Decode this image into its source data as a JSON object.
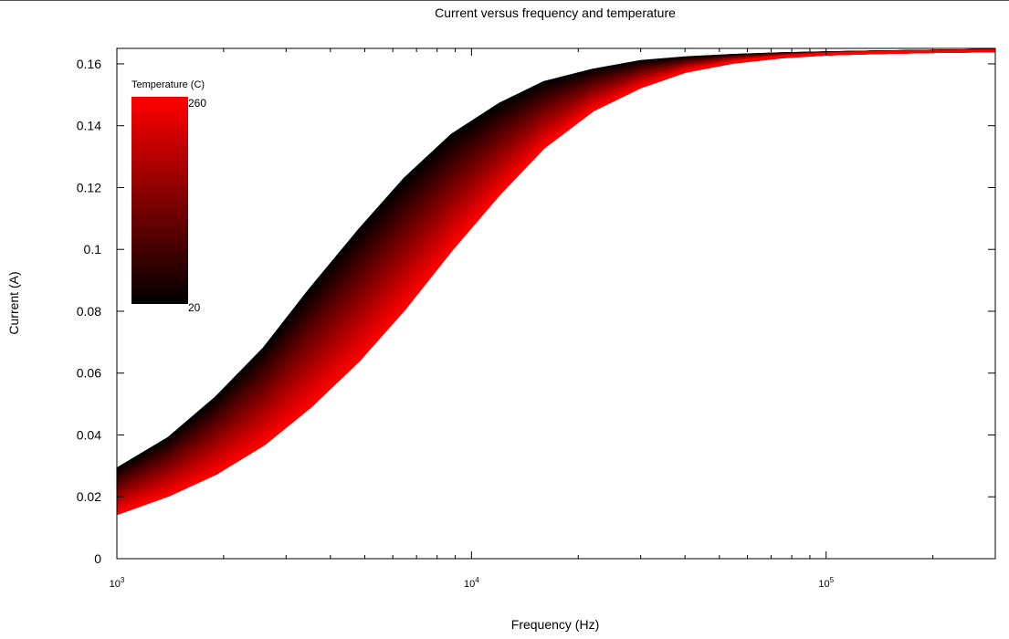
{
  "chart_data": {
    "type": "area",
    "title": "Current versus frequency and temperature",
    "xlabel": "Frequency (Hz)",
    "ylabel": "Current (A)",
    "x_scale": "log",
    "xlim": [
      1000,
      300000
    ],
    "ylim": [
      0,
      0.165
    ],
    "x_ticks": [
      {
        "value": 1000,
        "base": "10",
        "exp": "3"
      },
      {
        "value": 10000,
        "base": "10",
        "exp": "4"
      },
      {
        "value": 100000,
        "base": "10",
        "exp": "5"
      }
    ],
    "y_ticks": [
      {
        "value": 0,
        "label": "0"
      },
      {
        "value": 0.02,
        "label": "0.02"
      },
      {
        "value": 0.04,
        "label": "0.04"
      },
      {
        "value": 0.06,
        "label": "0.06"
      },
      {
        "value": 0.08,
        "label": "0.08"
      },
      {
        "value": 0.1,
        "label": "0.1"
      },
      {
        "value": 0.12,
        "label": "0.12"
      },
      {
        "value": 0.14,
        "label": "0.14"
      },
      {
        "value": 0.16,
        "label": "0.16"
      }
    ],
    "grid": false,
    "colorbar": {
      "label": "Temperature (C)",
      "min": 20,
      "max": 260,
      "min_label": "20",
      "max_label": "260",
      "low_color": "#000000",
      "high_color": "#ff0000",
      "placement": "top-left"
    },
    "x": [
      1000,
      1400,
      1900,
      2600,
      3500,
      4800,
      6500,
      8800,
      12000,
      16000,
      22000,
      30000,
      40000,
      55000,
      75000,
      100000,
      140000,
      190000,
      260000,
      300000
    ],
    "series": [
      {
        "temperature": 20,
        "values": [
          0.029,
          0.039,
          0.052,
          0.068,
          0.087,
          0.106,
          0.123,
          0.137,
          0.147,
          0.154,
          0.158,
          0.1608,
          0.162,
          0.1628,
          0.1633,
          0.1636,
          0.1639,
          0.1641,
          0.1643,
          0.1644
        ]
      },
      {
        "temperature": 260,
        "values": [
          0.0145,
          0.0205,
          0.0275,
          0.037,
          0.049,
          0.064,
          0.081,
          0.1,
          0.118,
          0.133,
          0.145,
          0.1525,
          0.1575,
          0.1605,
          0.1622,
          0.1631,
          0.1636,
          0.1639,
          0.1641,
          0.1642
        ]
      }
    ]
  }
}
